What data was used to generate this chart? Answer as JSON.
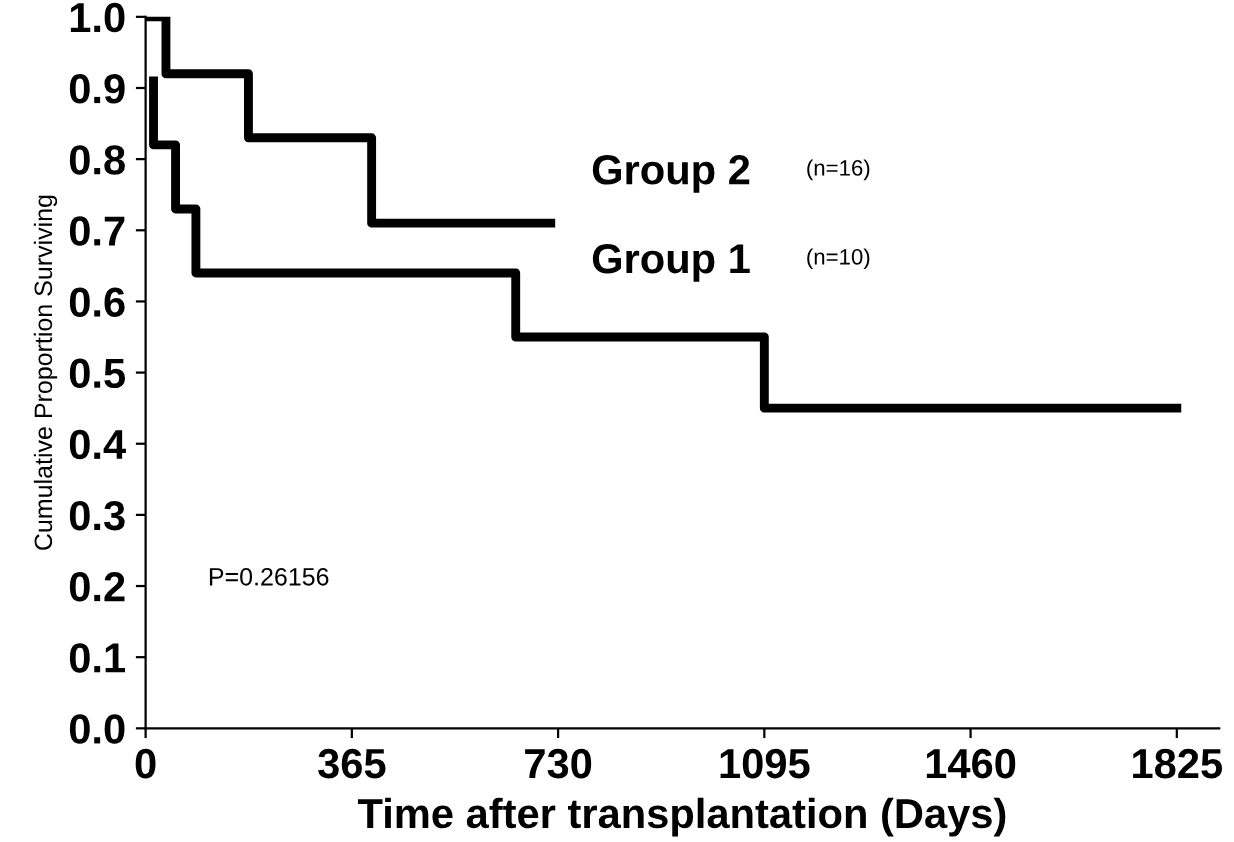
{
  "chart_data": {
    "type": "step",
    "xlabel": "Time after transplantation (Days)",
    "ylabel": "Cumulative Proportion Surviving",
    "xlim": [
      0,
      1900
    ],
    "xticks": [
      0,
      365,
      730,
      1095,
      1460,
      1825
    ],
    "ylim": [
      0,
      1.0
    ],
    "yticks": [
      {
        "value": 0,
        "label": "0.0"
      },
      0.1,
      0.2,
      0.3,
      0.4,
      0.5,
      0.6,
      0.7,
      0.8,
      0.9,
      {
        "value": 1,
        "label": "1.0"
      }
    ],
    "series": [
      {
        "name": "Group 2",
        "color": "#000000",
        "x": [
          0,
          36,
          182,
          400,
          717
        ],
        "values": [
          1.0,
          0.92,
          0.83,
          0.71,
          0.71
        ]
      },
      {
        "name": "Group 1",
        "color": "#000000",
        "x": [
          14,
          14,
          53,
          89,
          655,
          1095,
          1825
        ],
        "values": [
          0.91,
          0.82,
          0.73,
          0.64,
          0.55,
          0.45,
          0.45
        ]
      }
    ],
    "annotations": [
      "(n=16)",
      "(n=10)",
      "P=0.26156"
    ],
    "grid": false,
    "legend": false,
    "marker": "none",
    "line_style": "solid"
  }
}
